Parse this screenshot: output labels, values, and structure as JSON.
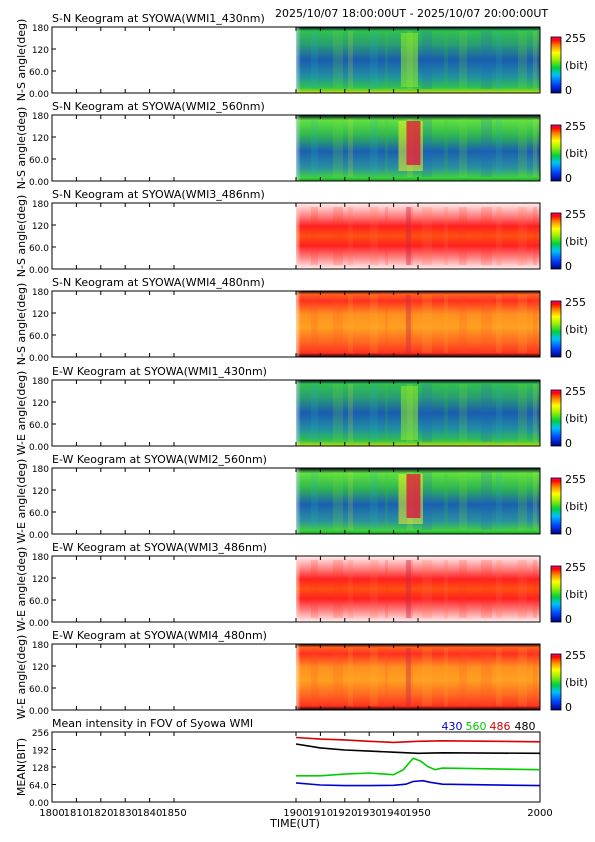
{
  "header": {
    "time_range": "2025/10/07 18:00:00UT - 2025/10/07 20:00:00UT"
  },
  "colorbar": {
    "max_label": "255",
    "unit_label": "(bit)",
    "min_label": "0"
  },
  "palettes": {
    "keogram_colors": [
      "#0000a0",
      "#1e64c8",
      "#28b4b4",
      "#3cc828",
      "#78e628",
      "#e6e628",
      "#ffa000",
      "#ff3c1e",
      "#ff0050"
    ]
  },
  "keograms": [
    {
      "title": "S-N Keogram at SYOWA(WMI1_430nm)",
      "ylabel": "N-S angle(deg)",
      "ticks": [
        "180",
        "120",
        "60.0",
        "0.00"
      ],
      "style": "green_dim"
    },
    {
      "title": "S-N Keogram at SYOWA(WMI2_560nm)",
      "ylabel": "N-S angle(deg)",
      "ticks": [
        "180",
        "120",
        "60.0",
        "0.00"
      ],
      "style": "green_active"
    },
    {
      "title": "S-N Keogram at SYOWA(WMI3_486nm)",
      "ylabel": "N-S angle(deg)",
      "ticks": [
        "180",
        "120",
        "60.0",
        "0.00"
      ],
      "style": "red"
    },
    {
      "title": "S-N Keogram at SYOWA(WMI4_480nm)",
      "ylabel": "N-S angle(deg)",
      "ticks": [
        "180",
        "120",
        "60.0",
        "0.00"
      ],
      "style": "orange"
    },
    {
      "title": "E-W Keogram at SYOWA(WMI1_430nm)",
      "ylabel": "W-E angle(deg)",
      "ticks": [
        "180",
        "120",
        "60.0",
        "0.00"
      ],
      "style": "green_dim"
    },
    {
      "title": "E-W Keogram at SYOWA(WMI2_560nm)",
      "ylabel": "W-E angle(deg)",
      "ticks": [
        "180",
        "120",
        "60.0",
        "0.00"
      ],
      "style": "green_active"
    },
    {
      "title": "E-W Keogram at SYOWA(WMI3_486nm)",
      "ylabel": "W-E angle(deg)",
      "ticks": [
        "180",
        "120",
        "60.0",
        "0.00"
      ],
      "style": "red"
    },
    {
      "title": "E-W Keogram at SYOWA(WMI4_480nm)",
      "ylabel": "W-E angle(deg)",
      "ticks": [
        "180",
        "120",
        "60.0",
        "0.00"
      ],
      "style": "orange"
    }
  ],
  "chart_data": {
    "type": "line",
    "title": "Mean intensity in FOV of Syowa WMI",
    "xlabel": "TIME(UT)",
    "ylabel": "MEAN(BIT)",
    "xlim": [
      1800,
      2000
    ],
    "ylim": [
      0,
      256
    ],
    "x_ticks": [
      "1800",
      "1810",
      "1820",
      "1830",
      "1840",
      "1850",
      "1900",
      "1910",
      "1920",
      "1930",
      "1940",
      "1950",
      "2000"
    ],
    "y_ticks": [
      "256",
      "192",
      "128",
      "64.0",
      "0.00"
    ],
    "data_start": 1900,
    "series": [
      {
        "name": "430",
        "color": "#0000cc",
        "x": [
          1900,
          1910,
          1920,
          1930,
          1940,
          1945,
          1948,
          1952,
          1955,
          1960,
          2000
        ],
        "y": [
          70,
          62,
          60,
          60,
          61,
          65,
          75,
          78,
          72,
          65,
          60
        ]
      },
      {
        "name": "560",
        "color": "#00cc00",
        "x": [
          1900,
          1910,
          1920,
          1930,
          1940,
          1944,
          1948,
          1951,
          1954,
          1957,
          1960,
          2000
        ],
        "y": [
          96,
          96,
          102,
          106,
          100,
          118,
          160,
          150,
          130,
          118,
          124,
          118
        ]
      },
      {
        "name": "486",
        "color": "#dd0000",
        "x": [
          1900,
          1910,
          1920,
          1930,
          1940,
          1950,
          1960,
          2000
        ],
        "y": [
          236,
          230,
          227,
          222,
          218,
          222,
          224,
          220
        ]
      },
      {
        "name": "480",
        "color": "#000000",
        "x": [
          1900,
          1910,
          1920,
          1930,
          1940,
          1950,
          1960,
          2000
        ],
        "y": [
          212,
          198,
          190,
          186,
          182,
          178,
          180,
          178
        ]
      }
    ]
  }
}
